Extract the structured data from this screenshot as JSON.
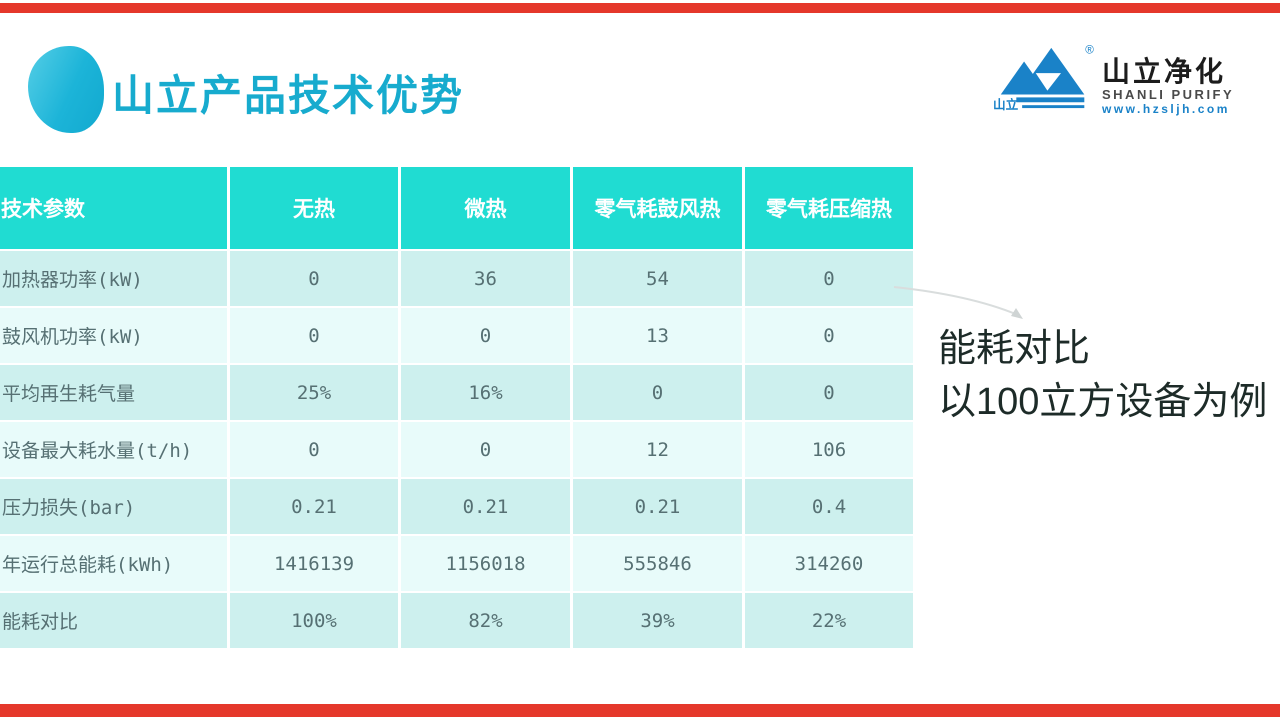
{
  "slide": {
    "title": "山立产品技术优势"
  },
  "logo": {
    "mark_label": "山立",
    "registered": "®",
    "brand_cn": "山立净化",
    "brand_en": "SHANLI PURIFY",
    "url": "www.hzsljh.com"
  },
  "annotation": {
    "line1": "能耗对比",
    "line2": "以100立方设备为例"
  },
  "table": {
    "headers": [
      "技术参数",
      "无热",
      "微热",
      "零气耗鼓风热",
      "零气耗压缩热"
    ],
    "rows": [
      {
        "label": "加热器功率(kW)",
        "values": [
          "0",
          "36",
          "54",
          "0"
        ]
      },
      {
        "label": "鼓风机功率(kW)",
        "values": [
          "0",
          "0",
          "13",
          "0"
        ]
      },
      {
        "label": "平均再生耗气量",
        "values": [
          "25%",
          "16%",
          "0",
          "0"
        ]
      },
      {
        "label": "设备最大耗水量(t/h)",
        "values": [
          "0",
          "0",
          "12",
          "106"
        ]
      },
      {
        "label": "压力损失(bar)",
        "values": [
          "0.21",
          "0.21",
          "0.21",
          "0.4"
        ]
      },
      {
        "label": "年运行总能耗(kWh)",
        "values": [
          "1416139",
          "1156018",
          "555846",
          "314260"
        ]
      },
      {
        "label": "能耗对比",
        "values": [
          "100%",
          "82%",
          "39%",
          "22%"
        ]
      }
    ]
  },
  "colors": {
    "accent_red": "#e5382b",
    "header_teal": "#20dcd2",
    "row_dark": "#cdf0ee",
    "row_light": "#e8fbfa",
    "table_text": "#567073",
    "title_teal": "#17abce",
    "logo_blue": "#1a82c8",
    "annotation_text": "#1d2b28",
    "arrow_gray": "#d9dddd"
  }
}
